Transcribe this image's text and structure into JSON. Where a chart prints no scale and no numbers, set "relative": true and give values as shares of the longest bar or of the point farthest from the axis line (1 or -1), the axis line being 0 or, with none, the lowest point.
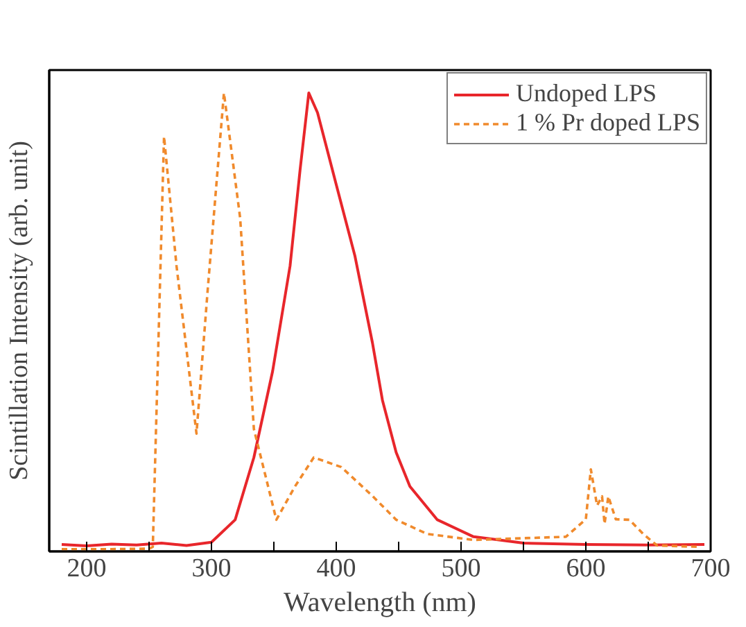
{
  "chart_data": {
    "type": "line",
    "relative": true,
    "xlabel": "Wavelength (nm)",
    "ylabel": "Scintillation Intensity (arb. unit)",
    "xlim": [
      170,
      700
    ],
    "xticks": [
      200,
      {
        "value": 250,
        "label": null
      },
      300,
      {
        "value": 350,
        "label": null
      },
      400,
      {
        "value": 450,
        "label": null
      },
      500,
      {
        "value": 550,
        "label": null
      },
      600,
      {
        "value": 650,
        "label": null
      },
      700
    ],
    "grid": false,
    "legend": "top right",
    "marker": "none",
    "series": [
      {
        "name": "Undoped LPS",
        "color": "#e8262b",
        "line_style": "solid",
        "x": [
          180,
          200,
          220,
          240,
          260,
          280,
          300,
          319,
          334,
          349,
          363,
          371,
          378,
          385,
          400,
          415,
          429,
          437,
          448,
          459,
          481,
          510,
          550,
          600,
          650,
          695
        ],
        "values": [
          0.015,
          0.012,
          0.016,
          0.014,
          0.018,
          0.013,
          0.02,
          0.069,
          0.205,
          0.393,
          0.623,
          0.832,
          1.0,
          0.957,
          0.8,
          0.644,
          0.455,
          0.33,
          0.216,
          0.142,
          0.069,
          0.032,
          0.018,
          0.015,
          0.014,
          0.015
        ]
      },
      {
        "name": "1 % Pr doped LPS",
        "color": "#f08a2c",
        "line_style": "dashed",
        "x": [
          180,
          220,
          250,
          253,
          262,
          272,
          288,
          297,
          310,
          323,
          334,
          352,
          367,
          382,
          404,
          429,
          448,
          473,
          510,
          584,
          600,
          604,
          609,
          613,
          615,
          618,
          624,
          635,
          646,
          657,
          690
        ],
        "values": [
          0.005,
          0.005,
          0.006,
          0.01,
          0.905,
          0.623,
          0.257,
          0.571,
          1.0,
          0.727,
          0.267,
          0.069,
          0.142,
          0.205,
          0.184,
          0.121,
          0.069,
          0.038,
          0.025,
          0.032,
          0.07,
          0.179,
          0.1,
          0.12,
          0.06,
          0.12,
          0.07,
          0.069,
          0.038,
          0.013,
          0.01
        ]
      }
    ]
  }
}
